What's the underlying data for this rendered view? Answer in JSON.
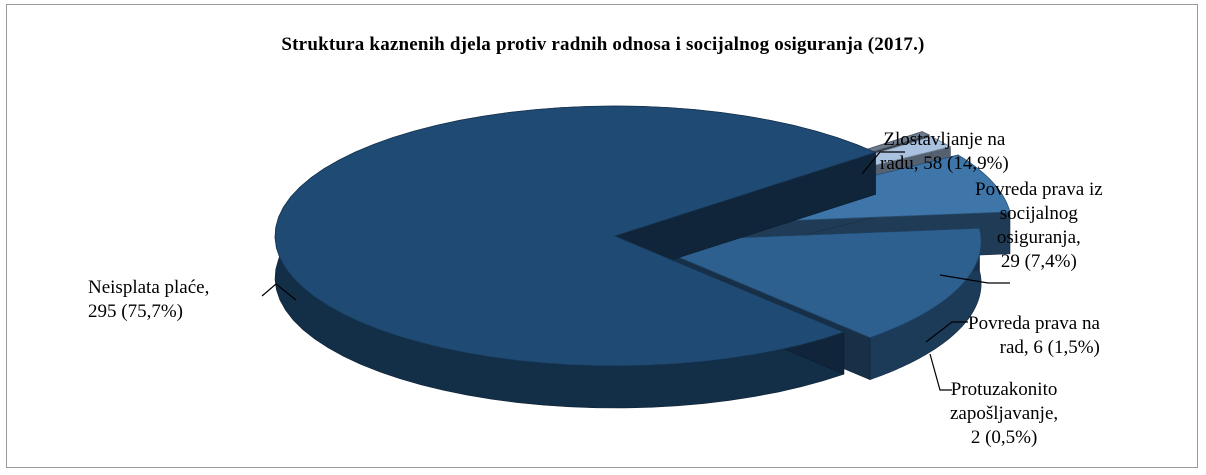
{
  "chart_data": {
    "type": "pie",
    "title": "Struktura kaznenih djela protiv radnih odnosa i socijalnog osiguranja (2017.)",
    "slices": [
      {
        "label_lines": [
          "Neisplata plaće,",
          "295 (75,7%)"
        ],
        "value": 295,
        "percent": 75.7,
        "color": "#1f4a73"
      },
      {
        "label_lines": [
          "Zlostavljanje na",
          "radu, 58 (14,9%)"
        ],
        "value": 58,
        "percent": 14.9,
        "color": "#2d5f8f"
      },
      {
        "label_lines": [
          "Povreda prava iz",
          "socijalnog",
          "osiguranja,",
          "29 (7,4%)"
        ],
        "value": 29,
        "percent": 7.4,
        "color": "#3f76aa"
      },
      {
        "label_lines": [
          "Povreda prava na",
          "rad, 6 (1,5%)"
        ],
        "value": 6,
        "percent": 1.5,
        "color": "#a9c2df"
      },
      {
        "label_lines": [
          "Protuzakonito",
          "zapošljavanje,",
          "2 (0,5%)"
        ],
        "value": 2,
        "percent": 0.5,
        "color": "#6d7b8c"
      }
    ]
  }
}
